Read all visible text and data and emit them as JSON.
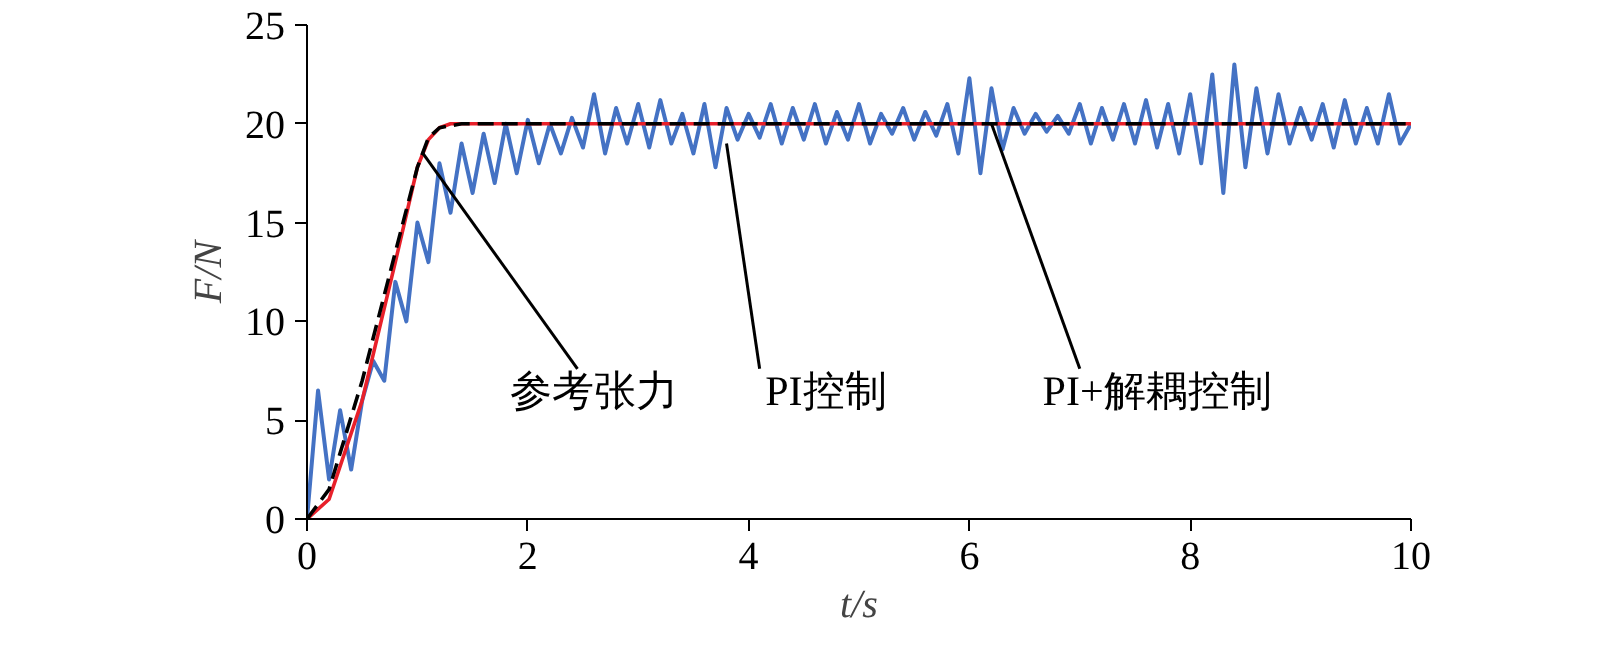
{
  "chart_data": {
    "type": "line",
    "xlabel": "t/s",
    "ylabel": "F/N",
    "xlim": [
      0,
      10
    ],
    "ylim": [
      0,
      25
    ],
    "xticks": [
      0,
      2,
      4,
      6,
      8,
      10
    ],
    "yticks": [
      0,
      5,
      10,
      15,
      20,
      25
    ],
    "grid": false,
    "annotations": [
      {
        "text": "参考张力",
        "x": 1.05,
        "y": 18.5
      },
      {
        "text": "PI控制",
        "x": 3.8,
        "y": 19.0
      },
      {
        "text": "PI+解耦控制",
        "x": 6.2,
        "y": 20.0
      }
    ],
    "series": [
      {
        "color": "#4472c4",
        "line_style": "solid",
        "x": [
          0,
          0.1,
          0.2,
          0.3,
          0.4,
          0.5,
          0.6,
          0.7,
          0.8,
          0.9,
          1.0,
          1.1,
          1.2,
          1.3,
          1.4,
          1.5,
          1.6,
          1.7,
          1.8,
          1.9,
          2.0,
          2.1,
          2.2,
          2.3,
          2.4,
          2.5,
          2.6,
          2.7,
          2.8,
          2.9,
          3.0,
          3.1,
          3.2,
          3.3,
          3.4,
          3.5,
          3.6,
          3.7,
          3.8,
          3.9,
          4.0,
          4.1,
          4.2,
          4.3,
          4.4,
          4.5,
          4.6,
          4.7,
          4.8,
          4.9,
          5.0,
          5.1,
          5.2,
          5.3,
          5.4,
          5.5,
          5.6,
          5.7,
          5.8,
          5.9,
          6.0,
          6.1,
          6.2,
          6.3,
          6.4,
          6.5,
          6.6,
          6.7,
          6.8,
          6.9,
          7.0,
          7.1,
          7.2,
          7.3,
          7.4,
          7.5,
          7.6,
          7.7,
          7.8,
          7.9,
          8.0,
          8.1,
          8.2,
          8.3,
          8.4,
          8.5,
          8.6,
          8.7,
          8.8,
          8.9,
          9.0,
          9.1,
          9.2,
          9.3,
          9.4,
          9.5,
          9.6,
          9.7,
          9.8,
          9.9,
          10.0
        ],
        "values": [
          0,
          6.5,
          2,
          5.5,
          2.5,
          6,
          8,
          7,
          12,
          10,
          15,
          13,
          18,
          15.5,
          19,
          16.5,
          19.5,
          17,
          20,
          17.5,
          20.2,
          18,
          20,
          18.5,
          20.3,
          18.8,
          21.5,
          18.5,
          20.8,
          19,
          21,
          18.8,
          21.2,
          19,
          20.5,
          18.5,
          21,
          17.8,
          20.8,
          19.2,
          20.5,
          19.3,
          21,
          19,
          20.8,
          19.2,
          21,
          19,
          20.6,
          19.2,
          21,
          19,
          20.5,
          19.5,
          20.8,
          19.2,
          20.6,
          19.4,
          21,
          18.5,
          22.3,
          17.5,
          21.8,
          18.7,
          20.8,
          19.5,
          20.5,
          19.6,
          20.4,
          19.5,
          21,
          19,
          20.8,
          19.2,
          21,
          19,
          21.2,
          18.8,
          21,
          18.5,
          21.5,
          18,
          22.5,
          16.5,
          23,
          17.8,
          21.8,
          18.5,
          21.5,
          19,
          20.8,
          19.2,
          21,
          18.8,
          21.2,
          19,
          20.8,
          19,
          21.5,
          19,
          20
        ]
      },
      {
        "color": "#e8202a",
        "line_style": "solid",
        "x": [
          0,
          0.2,
          0.5,
          0.8,
          1.0,
          1.1,
          1.2,
          1.3,
          1.5,
          10
        ],
        "values": [
          0,
          1,
          6,
          13,
          17.8,
          19.2,
          19.8,
          20,
          20,
          20
        ]
      },
      {
        "color": "#000000",
        "line_style": "dashed",
        "x": [
          0,
          0.2,
          0.5,
          0.8,
          1.0,
          1.1,
          1.2,
          1.4,
          10
        ],
        "values": [
          0,
          1.5,
          7,
          13.5,
          17.8,
          19.3,
          19.8,
          20,
          20
        ]
      }
    ]
  }
}
